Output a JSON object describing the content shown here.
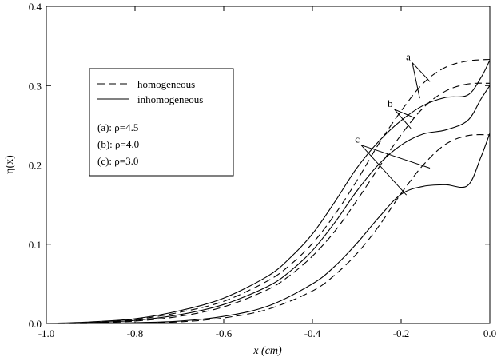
{
  "chart_data": {
    "type": "line",
    "title": "",
    "xlabel": "x (cm)",
    "ylabel": "η(x)",
    "xlim": [
      -1.0,
      0.0
    ],
    "ylim": [
      0.0,
      0.4
    ],
    "xticks": [
      -1.0,
      -0.8,
      -0.6,
      -0.4,
      -0.2,
      0.0
    ],
    "xtick_labels": [
      "-1.0",
      "-0.8",
      "-0.6",
      "-0.4",
      "-0.2",
      "0.0"
    ],
    "yticks": [
      0.0,
      0.1,
      0.2,
      0.3,
      0.4
    ],
    "ytick_labels": [
      "0.0",
      "0.1",
      "0.2",
      "0.3",
      "0.4"
    ],
    "grid": false,
    "legend": {
      "placement": "upper-left",
      "entries": [
        {
          "label": "homogeneous",
          "style": "dashed"
        },
        {
          "label": "inhomogeneous",
          "style": "solid"
        }
      ],
      "notes": [
        "(a): ρ=4.5",
        "(b): ρ=4.0",
        "(c): ρ=3.0"
      ]
    },
    "series": [
      {
        "group": "a",
        "style": "dashed",
        "x": [
          -1.0,
          -0.9,
          -0.8,
          -0.7,
          -0.6,
          -0.5,
          -0.45,
          -0.4,
          -0.35,
          -0.3,
          -0.25,
          -0.2,
          -0.15,
          -0.1,
          -0.05,
          0.0
        ],
        "y": [
          0.0,
          0.001,
          0.005,
          0.014,
          0.028,
          0.054,
          0.074,
          0.101,
          0.137,
          0.18,
          0.227,
          0.268,
          0.303,
          0.323,
          0.331,
          0.333
        ]
      },
      {
        "group": "a",
        "style": "solid",
        "x": [
          -1.0,
          -0.9,
          -0.8,
          -0.7,
          -0.6,
          -0.5,
          -0.45,
          -0.4,
          -0.35,
          -0.3,
          -0.25,
          -0.2,
          -0.15,
          -0.1,
          -0.05,
          -0.02,
          0.0
        ],
        "y": [
          0.0,
          0.002,
          0.006,
          0.016,
          0.032,
          0.06,
          0.083,
          0.113,
          0.153,
          0.196,
          0.23,
          0.256,
          0.275,
          0.285,
          0.288,
          0.31,
          0.332
        ]
      },
      {
        "group": "b",
        "style": "dashed",
        "x": [
          -1.0,
          -0.9,
          -0.8,
          -0.7,
          -0.6,
          -0.5,
          -0.45,
          -0.4,
          -0.35,
          -0.3,
          -0.25,
          -0.2,
          -0.15,
          -0.1,
          -0.05,
          0.0
        ],
        "y": [
          0.0,
          0.0005,
          0.003,
          0.009,
          0.021,
          0.043,
          0.061,
          0.085,
          0.116,
          0.155,
          0.197,
          0.238,
          0.272,
          0.293,
          0.302,
          0.303
        ]
      },
      {
        "group": "b",
        "style": "solid",
        "x": [
          -1.0,
          -0.9,
          -0.8,
          -0.7,
          -0.6,
          -0.5,
          -0.45,
          -0.4,
          -0.35,
          -0.3,
          -0.25,
          -0.2,
          -0.15,
          -0.1,
          -0.05,
          -0.02,
          0.0
        ],
        "y": [
          0.0,
          0.001,
          0.004,
          0.011,
          0.024,
          0.047,
          0.066,
          0.092,
          0.127,
          0.167,
          0.201,
          0.225,
          0.239,
          0.244,
          0.256,
          0.283,
          0.3
        ]
      },
      {
        "group": "c",
        "style": "dashed",
        "x": [
          -1.0,
          -0.9,
          -0.8,
          -0.7,
          -0.6,
          -0.5,
          -0.4,
          -0.35,
          -0.3,
          -0.25,
          -0.2,
          -0.15,
          -0.1,
          -0.05,
          0.0
        ],
        "y": [
          0.0,
          0.0,
          0.0005,
          0.002,
          0.007,
          0.018,
          0.041,
          0.061,
          0.088,
          0.123,
          0.164,
          0.2,
          0.226,
          0.237,
          0.238
        ]
      },
      {
        "group": "c",
        "style": "solid",
        "x": [
          -1.0,
          -0.9,
          -0.8,
          -0.7,
          -0.6,
          -0.5,
          -0.4,
          -0.35,
          -0.3,
          -0.25,
          -0.2,
          -0.15,
          -0.1,
          -0.05,
          -0.02,
          0.0
        ],
        "y": [
          0.0,
          0.0,
          0.001,
          0.003,
          0.009,
          0.022,
          0.05,
          0.072,
          0.101,
          0.134,
          0.163,
          0.173,
          0.175,
          0.174,
          0.21,
          0.24
        ]
      }
    ],
    "annotations": [
      {
        "label": "a",
        "at": [
          -0.175,
          0.329
        ],
        "targets": [
          [
            -0.135,
            0.305
          ],
          [
            -0.158,
            0.284
          ]
        ]
      },
      {
        "label": "b",
        "at": [
          -0.215,
          0.27
        ],
        "targets": [
          [
            -0.168,
            0.259
          ],
          [
            -0.178,
            0.246
          ]
        ]
      },
      {
        "label": "c",
        "at": [
          -0.29,
          0.225
        ],
        "targets": [
          [
            -0.135,
            0.196
          ],
          [
            -0.188,
            0.162
          ]
        ]
      }
    ]
  }
}
